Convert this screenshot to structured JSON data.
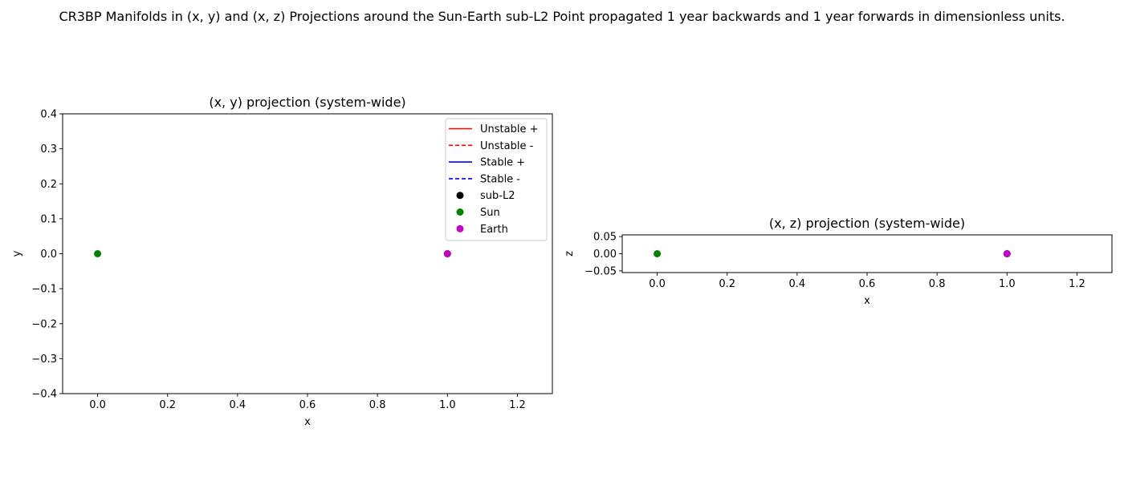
{
  "figure": {
    "suptitle": "CR3BP Manifolds in (x, y) and (x, z) Projections around the Sun-Earth sub-L2 Point propagated 1 year backwards and 1 year forwards in dimensionless units."
  },
  "chart_data": [
    {
      "type": "scatter",
      "title": "(x, y) projection (system-wide)",
      "xlabel": "x",
      "ylabel": "y",
      "xlim": [
        -0.1,
        1.3
      ],
      "ylim": [
        -0.4,
        0.4
      ],
      "xticks": [
        0.0,
        0.2,
        0.4,
        0.6,
        0.8,
        1.0,
        1.2
      ],
      "xticklabels": [
        "0.0",
        "0.2",
        "0.4",
        "0.6",
        "0.8",
        "1.0",
        "1.2"
      ],
      "yticks": [
        0.4,
        0.3,
        0.2,
        0.1,
        0.0,
        -0.1,
        -0.2,
        -0.3,
        -0.4
      ],
      "yticklabels": [
        "0.4",
        "0.3",
        "0.2",
        "0.1",
        "0.0",
        "−0.1",
        "−0.2",
        "−0.3",
        "−0.4"
      ],
      "grid": false,
      "legend_position": "top-right",
      "series": [
        {
          "name": "Unstable +",
          "kind": "line",
          "style": "solid",
          "color": "#ff0000",
          "points": []
        },
        {
          "name": "Unstable -",
          "kind": "line",
          "style": "dashed",
          "color": "#ff0000",
          "points": []
        },
        {
          "name": "Stable +",
          "kind": "line",
          "style": "solid",
          "color": "#0000ff",
          "points": []
        },
        {
          "name": "Stable -",
          "kind": "line",
          "style": "dashed",
          "color": "#0000ff",
          "points": []
        },
        {
          "name": "sub-L2",
          "kind": "marker",
          "color": "#000000",
          "points": [
            [
              1.0,
              0.0
            ]
          ]
        },
        {
          "name": "Sun",
          "kind": "marker",
          "color": "#008000",
          "points": [
            [
              0.0,
              0.0
            ]
          ]
        },
        {
          "name": "Earth",
          "kind": "marker",
          "color": "#bf00bf",
          "points": [
            [
              1.0,
              0.0
            ]
          ]
        }
      ]
    },
    {
      "type": "scatter",
      "title": "(x, z) projection (system-wide)",
      "xlabel": "x",
      "ylabel": "z",
      "xlim": [
        -0.1,
        1.3
      ],
      "ylim": [
        -0.055,
        0.055
      ],
      "xticks": [
        0.0,
        0.2,
        0.4,
        0.6,
        0.8,
        1.0,
        1.2
      ],
      "xticklabels": [
        "0.0",
        "0.2",
        "0.4",
        "0.6",
        "0.8",
        "1.0",
        "1.2"
      ],
      "yticks": [
        0.05,
        0.0,
        -0.05
      ],
      "yticklabels": [
        "0.05",
        "0.00",
        "−0.05"
      ],
      "grid": false,
      "series": [
        {
          "name": "sub-L2",
          "kind": "marker",
          "color": "#000000",
          "points": [
            [
              1.0,
              0.0
            ]
          ]
        },
        {
          "name": "Sun",
          "kind": "marker",
          "color": "#008000",
          "points": [
            [
              0.0,
              0.0
            ]
          ]
        },
        {
          "name": "Earth",
          "kind": "marker",
          "color": "#bf00bf",
          "points": [
            [
              1.0,
              0.0
            ]
          ]
        }
      ]
    }
  ]
}
